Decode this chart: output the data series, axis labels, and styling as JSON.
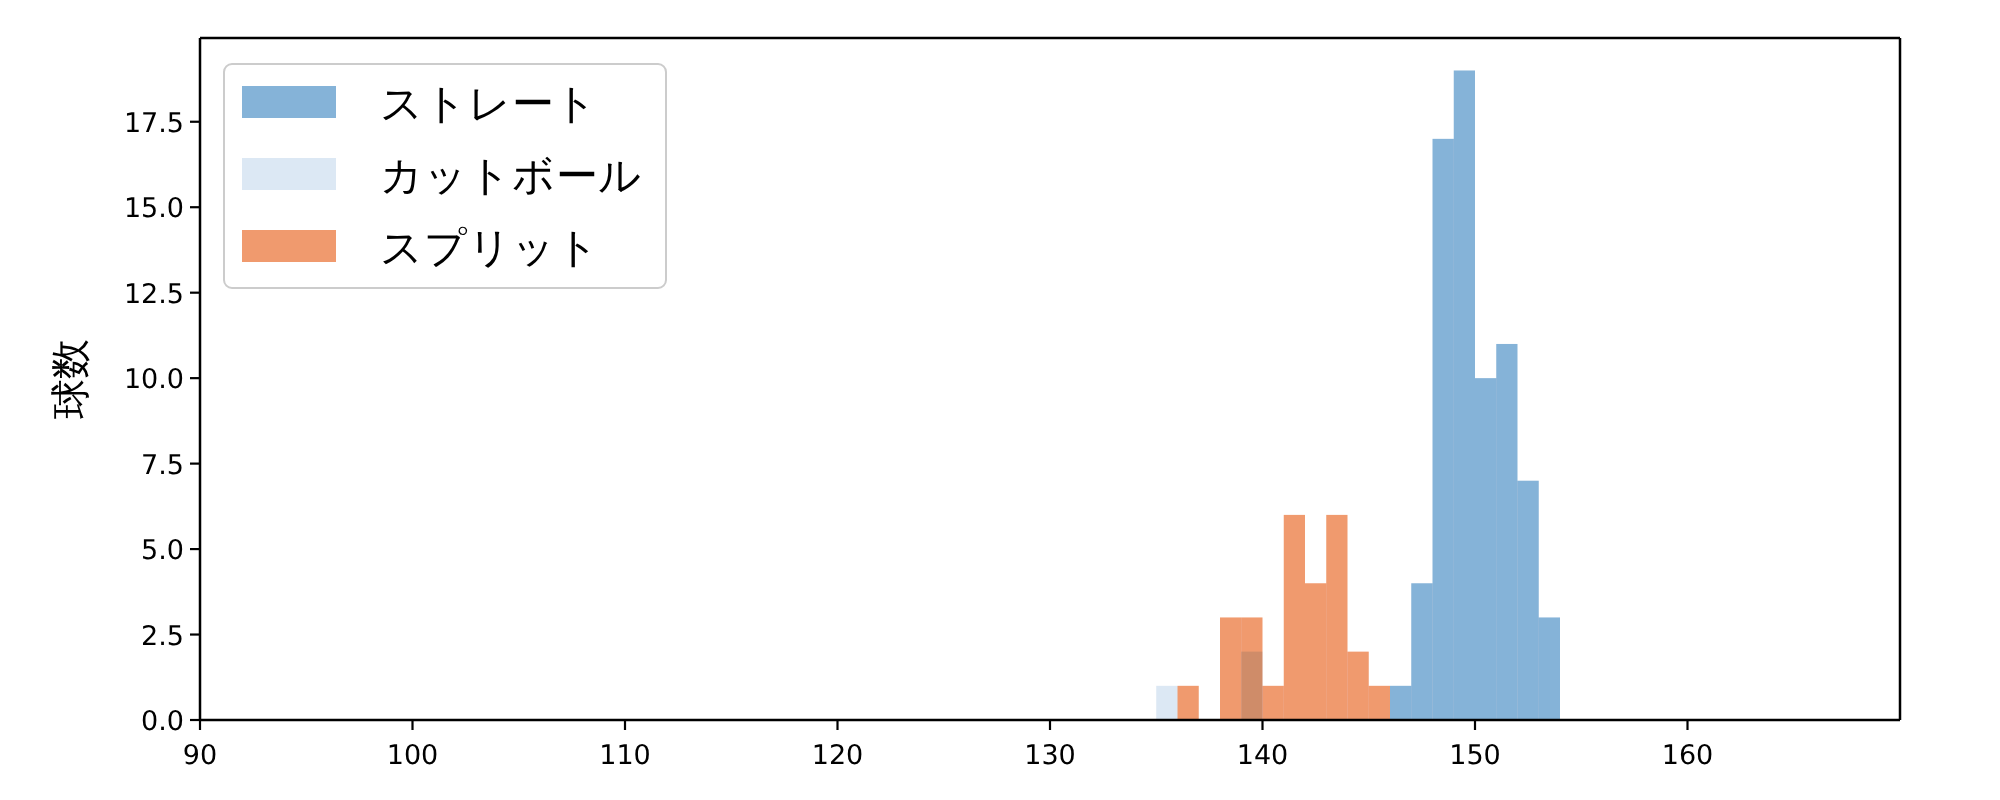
{
  "chart_data": {
    "type": "histogram",
    "ylabel": "球数",
    "xlim": [
      90,
      170
    ],
    "ylim": [
      0,
      19.95
    ],
    "xticks": [
      90,
      100,
      110,
      120,
      130,
      140,
      150,
      160
    ],
    "yticks": [
      {
        "value": 0,
        "label": "0.0"
      },
      {
        "value": 2.5,
        "label": "2.5"
      },
      {
        "value": 5,
        "label": "5.0"
      },
      {
        "value": 7.5,
        "label": "7.5"
      },
      {
        "value": 10,
        "label": "10.0"
      },
      {
        "value": 12.5,
        "label": "12.5"
      },
      {
        "value": 15,
        "label": "15.0"
      },
      17.5
    ],
    "legend": "top left",
    "bins": [
      135,
      136,
      137,
      138,
      139,
      140,
      141,
      142,
      143,
      144,
      145,
      146,
      147,
      148,
      149,
      150,
      151,
      152,
      153,
      154
    ],
    "series": [
      {
        "name": "ストレート",
        "color": "#85b3d8",
        "values": [
          0,
          0,
          0,
          0,
          0,
          0,
          0,
          0,
          0,
          0,
          0,
          1,
          4,
          17,
          19,
          10,
          11,
          7,
          3
        ]
      },
      {
        "name": "カットボール",
        "color": "#dce8f4",
        "values": [
          1,
          0,
          0,
          0,
          2,
          0,
          0,
          0,
          0,
          0,
          0,
          0,
          0,
          0,
          0,
          0,
          0,
          0,
          0
        ]
      },
      {
        "name": "スプリット",
        "color": "#f09a6e",
        "values": [
          0,
          1,
          0,
          3,
          3,
          1,
          6,
          4,
          6,
          2,
          1,
          0,
          0,
          0,
          0,
          0,
          0,
          0,
          0
        ]
      }
    ]
  }
}
